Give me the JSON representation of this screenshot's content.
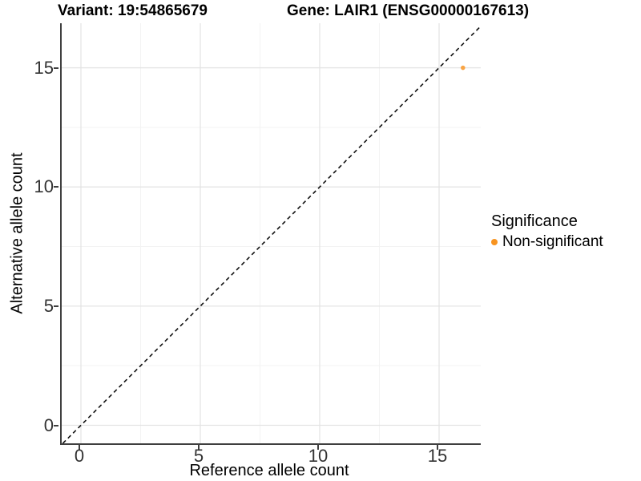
{
  "header": {
    "variant_title": "Variant: 19:54865679",
    "gene_title": "Gene: LAIR1 (ENSG00000167613)"
  },
  "chart_data": {
    "type": "scatter",
    "title": "Variant: 19:54865679   Gene: LAIR1 (ENSG00000167613)",
    "xlabel": "Reference allele count",
    "ylabel": "Alternative allele count",
    "x_ticks": [
      0,
      5,
      10,
      15
    ],
    "y_ticks": [
      0,
      5,
      10,
      15
    ],
    "xlim": [
      -0.8,
      16.8
    ],
    "ylim": [
      -0.76,
      16.87
    ],
    "grid": {
      "shown": true,
      "major": [
        0,
        5,
        10,
        15
      ],
      "minor": [
        2.5,
        7.5,
        12.5
      ]
    },
    "identity_line": {
      "equation": "y = x",
      "style": "dashed",
      "color": "#111111"
    },
    "series": [
      {
        "name": "Non-significant",
        "color": "#F9A03C",
        "points": [
          {
            "x": 16,
            "y": 15
          }
        ]
      }
    ],
    "legend": {
      "title": "Significance",
      "position": "right",
      "entries": [
        {
          "label": "Non-significant",
          "color": "#F89420"
        }
      ]
    },
    "colors": {
      "grid_major": "#e4e4e4",
      "grid_minor": "#f3f3f3",
      "axis_line": "#3f3f3f",
      "tick_text": "#333333"
    }
  }
}
